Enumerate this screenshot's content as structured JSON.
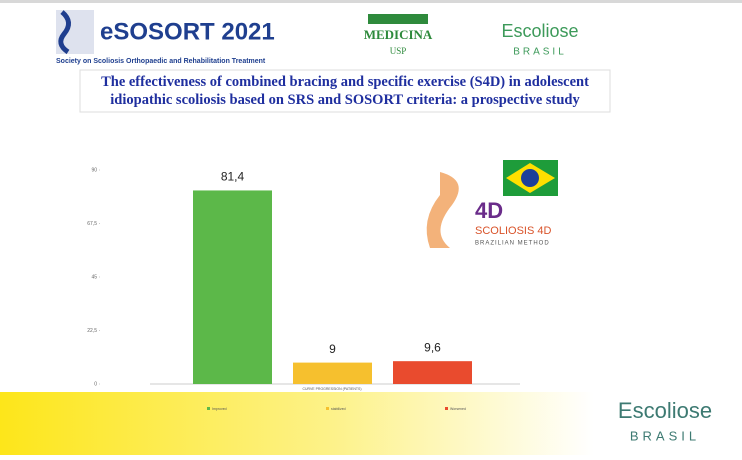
{
  "header": {
    "event": "eSOSORT 2021",
    "society": "Society on Scoliosis Orthopaedic and Rehabilitation Treatment",
    "medicina": "MEDICINA",
    "usp": "USP",
    "escoliose": "Escoliose",
    "brasil": "BRASIL"
  },
  "title": "The effectiveness of combined bracing and specific exercise (S4D) in adolescent idiopathic scoliosis based on SRS and SOSORT criteria: a prospective study",
  "s4d": {
    "mark": "4D",
    "name": "SCOLIOSIS 4D",
    "method": "BRAZILIAN METHOD"
  },
  "footer": {
    "escoliose": "Escoliose",
    "brasil": "BRASIL"
  },
  "chart_data": {
    "type": "bar",
    "categories": [
      "CURVE PROGRESSION (PATIENTS)"
    ],
    "series": [
      {
        "name": "Improved",
        "color": "#5cb849",
        "values": [
          81.4
        ],
        "value_labels": [
          "81,4"
        ]
      },
      {
        "name": "stabilized",
        "color": "#f6c02e",
        "values": [
          9
        ],
        "value_labels": [
          "9"
        ]
      },
      {
        "name": "Worsened",
        "color": "#e94b2e",
        "values": [
          9.6
        ],
        "value_labels": [
          "9,6"
        ]
      }
    ],
    "ylim": [
      0,
      90
    ],
    "yticks": [
      0,
      {
        "value": 22.5,
        "label": "22,5"
      },
      45,
      {
        "value": 67.5,
        "label": "67,5"
      },
      90
    ],
    "grid": false
  }
}
